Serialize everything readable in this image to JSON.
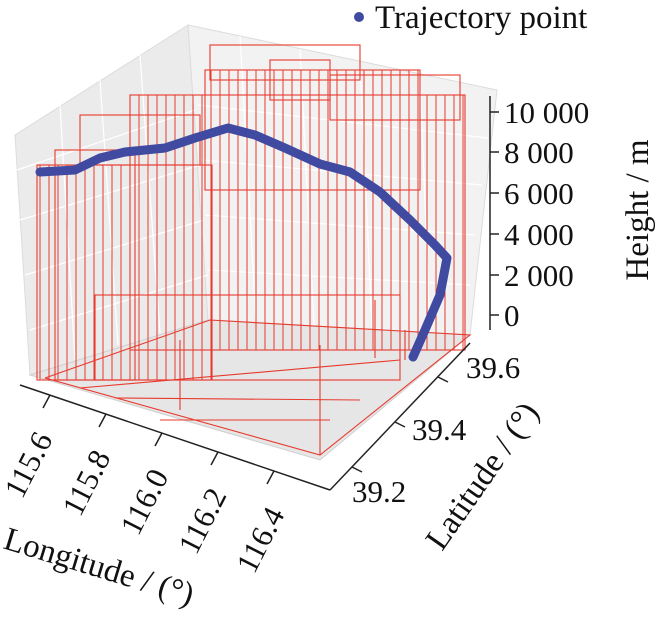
{
  "chart_data": {
    "type": "3d-line",
    "legend": {
      "label": "Trajectory point",
      "location": "top-right",
      "marker_color": "#3f4aa0"
    },
    "axes": {
      "x": {
        "label": "Longitude / (°)",
        "ticks": [
          "115.6",
          "115.8",
          "116.0",
          "116.2",
          "116.4"
        ],
        "range": [
          115.5,
          116.45
        ]
      },
      "y": {
        "label": "Latitude / (°)",
        "ticks": [
          "39.2",
          "39.4",
          "39.6"
        ],
        "range": [
          39.1,
          39.7
        ]
      },
      "z": {
        "label": "Height / m",
        "ticks": [
          "0",
          "2 000",
          "4 000",
          "6 000",
          "8 000",
          "10 000"
        ],
        "range": [
          0,
          10000
        ]
      }
    },
    "series": [
      {
        "name": "Trajectory point",
        "color": "#3f4aa0",
        "points": [
          {
            "lon": 115.5,
            "lat": 39.65,
            "h": 7000
          },
          {
            "lon": 115.58,
            "lat": 39.62,
            "h": 7200
          },
          {
            "lon": 115.66,
            "lat": 39.6,
            "h": 7800
          },
          {
            "lon": 115.75,
            "lat": 39.58,
            "h": 8300
          },
          {
            "lon": 115.85,
            "lat": 39.56,
            "h": 8600
          },
          {
            "lon": 115.95,
            "lat": 39.54,
            "h": 9000
          },
          {
            "lon": 116.02,
            "lat": 39.52,
            "h": 9100
          },
          {
            "lon": 116.1,
            "lat": 39.5,
            "h": 8400
          },
          {
            "lon": 116.18,
            "lat": 39.48,
            "h": 7600
          },
          {
            "lon": 116.24,
            "lat": 39.46,
            "h": 7000
          },
          {
            "lon": 116.3,
            "lat": 39.44,
            "h": 5600
          },
          {
            "lon": 116.35,
            "lat": 39.42,
            "h": 4000
          },
          {
            "lon": 116.37,
            "lat": 39.4,
            "h": 2500
          },
          {
            "lon": 116.33,
            "lat": 39.36,
            "h": 1000
          },
          {
            "lon": 116.27,
            "lat": 39.3,
            "h": 0
          }
        ]
      }
    ],
    "obstacles": {
      "color": "#e8392d",
      "style": "wireframe boxes"
    },
    "pane_color": "#ebebeb",
    "grid": true
  }
}
